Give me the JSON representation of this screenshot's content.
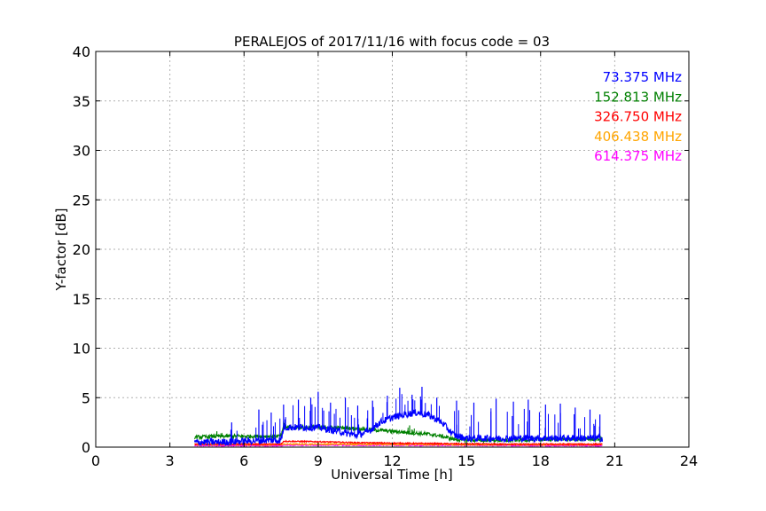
{
  "chart_data": {
    "type": "line",
    "title": "PERALEJOS of 2017/11/16 with focus code = 03",
    "xlabel": "Universal Time [h]",
    "ylabel": "Y-factor [dB]",
    "xlim": [
      0,
      24
    ],
    "ylim": [
      0,
      40
    ],
    "xticks": [
      0,
      3,
      6,
      9,
      12,
      15,
      18,
      21,
      24
    ],
    "yticks": [
      0,
      5,
      10,
      15,
      20,
      25,
      30,
      35,
      40
    ],
    "grid": true,
    "legend_position": "top-right",
    "series": [
      {
        "name": "73.375 MHz",
        "color": "#0000ff",
        "x": [
          4.0,
          5.0,
          6.0,
          7.0,
          7.5,
          7.6,
          8.5,
          9.0,
          10.0,
          10.5,
          11.0,
          11.5,
          12.0,
          12.5,
          13.0,
          13.5,
          14.0,
          14.5,
          15.0,
          16.0,
          17.0,
          18.0,
          19.0,
          20.0,
          20.5
        ],
        "y": [
          0.5,
          0.5,
          0.6,
          0.7,
          0.7,
          2.0,
          2.0,
          2.0,
          1.5,
          1.2,
          1.5,
          2.5,
          3.0,
          3.3,
          3.5,
          3.2,
          2.5,
          1.2,
          0.9,
          0.9,
          0.9,
          0.9,
          0.9,
          0.9,
          0.9
        ],
        "peaks_x": [
          5.5,
          6.6,
          7.1,
          7.6,
          8.2,
          8.7,
          9.0,
          9.5,
          10.1,
          10.6,
          11.2,
          11.8,
          12.3,
          12.8,
          13.2,
          13.8,
          14.6,
          15.3,
          16.2,
          16.9,
          17.5,
          18.2,
          18.8,
          19.4,
          20.0,
          20.4
        ],
        "peaks_y": [
          2.5,
          3.8,
          3.5,
          4.3,
          4.8,
          5.0,
          5.6,
          4.5,
          5.0,
          4.2,
          4.7,
          5.2,
          6.0,
          5.3,
          6.1,
          5.0,
          4.7,
          4.5,
          4.9,
          4.6,
          4.8,
          4.3,
          4.4,
          4.0,
          3.8,
          3.3
        ]
      },
      {
        "name": "152.813 MHz",
        "color": "#008000",
        "x": [
          4.0,
          5.0,
          6.0,
          7.0,
          7.5,
          7.6,
          8.5,
          9.5,
          10.5,
          11.5,
          12.5,
          13.0,
          13.5,
          14.0,
          14.5,
          15.0,
          16.0,
          17.0,
          18.0,
          19.0,
          20.0,
          20.5
        ],
        "y": [
          1.0,
          1.1,
          1.1,
          1.1,
          1.1,
          2.0,
          2.0,
          2.0,
          1.9,
          1.7,
          1.5,
          1.4,
          1.3,
          1.1,
          0.8,
          0.7,
          0.7,
          0.7,
          0.8,
          0.8,
          0.8,
          0.8
        ],
        "peaks_x": [
          4.9,
          7.6,
          12.7
        ],
        "peaks_y": [
          1.6,
          2.6,
          2.2
        ]
      },
      {
        "name": "326.750 MHz",
        "color": "#ff0000",
        "x": [
          4.0,
          6.0,
          7.5,
          7.6,
          9.0,
          10.5,
          12.0,
          14.0,
          16.0,
          18.0,
          20.5
        ],
        "y": [
          0.3,
          0.3,
          0.3,
          0.6,
          0.55,
          0.45,
          0.4,
          0.35,
          0.3,
          0.3,
          0.3
        ],
        "peaks_x": [],
        "peaks_y": []
      },
      {
        "name": "406.438 MHz",
        "color": "#ffa500",
        "x": [
          4.0,
          7.5,
          7.6,
          10.0,
          14.0,
          20.5
        ],
        "y": [
          0.25,
          0.25,
          0.3,
          0.3,
          0.25,
          0.25
        ],
        "peaks_x": [],
        "peaks_y": []
      },
      {
        "name": "614.375 MHz",
        "color": "#ff00ff",
        "x": [
          4.0,
          7.5,
          7.6,
          12.0,
          20.5
        ],
        "y": [
          0.15,
          0.15,
          0.2,
          0.2,
          0.15
        ],
        "peaks_x": [],
        "peaks_y": []
      }
    ]
  }
}
